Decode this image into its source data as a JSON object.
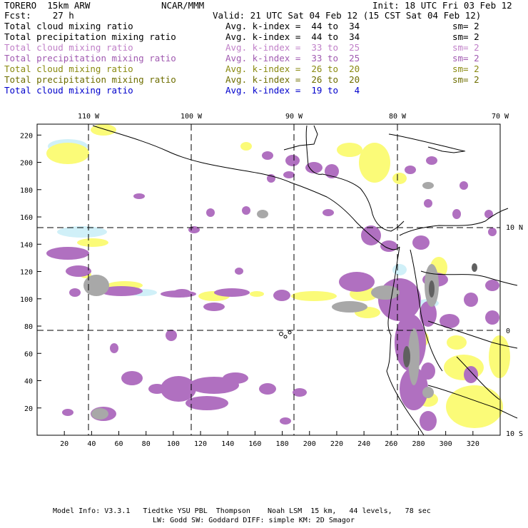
{
  "header": {
    "model_name": "TORERO  15km ARW",
    "institution": "NCAR/MMM",
    "init": "Init: 18 UTC Fri 03 Feb 12",
    "forecast": "Fcst:    27 h",
    "valid": "Valid: 21 UTC Sat 04 Feb 12 (15 CST Sat 04 Feb 12)"
  },
  "legend": [
    {
      "field": "Total cloud mixing ratio",
      "kindex": "Avg. k-index =  44 to  34",
      "sm": "sm= 2",
      "color": "#000000"
    },
    {
      "field": "Total precipitation mixing ratio",
      "kindex": "Avg. k-index =  44 to  34",
      "sm": "sm= 2",
      "color": "#000000"
    },
    {
      "field": "Total cloud mixing ratio",
      "kindex": "Avg. k-index =  33 to  25",
      "sm": "sm= 2",
      "color": "#c080c8"
    },
    {
      "field": "Total precipitation mixing ratio",
      "kindex": "Avg. k-index =  33 to  25",
      "sm": "sm= 2",
      "color": "#a05ab0"
    },
    {
      "field": "Total cloud mixing ratio",
      "kindex": "Avg. k-index =  26 to  20",
      "sm": "sm= 2",
      "color": "#8a8a10"
    },
    {
      "field": "Total precipitation mixing ratio",
      "kindex": "Avg. k-index =  26 to  20",
      "sm": "sm= 2",
      "color": "#6e6e00"
    },
    {
      "field": "Total cloud mixing ratio",
      "kindex": "Avg. k-index =  19 to   4",
      "sm": "",
      "color": "#0000cc"
    }
  ],
  "map": {
    "lon_labels": [
      "110 W",
      "100 W",
      "90 W",
      "80 W",
      "70 W"
    ],
    "lat_labels": [
      "10 N",
      "0",
      "10 S"
    ],
    "x_ticks": [
      "20",
      "40",
      "60",
      "80",
      "100",
      "120",
      "140",
      "160",
      "180",
      "200",
      "220",
      "240",
      "260",
      "280",
      "300",
      "320"
    ],
    "y_ticks": [
      "20",
      "40",
      "60",
      "80",
      "100",
      "120",
      "140",
      "160",
      "180",
      "200",
      "220"
    ],
    "colors": {
      "purple": "#b070c0",
      "yellow": "#fbfb78",
      "light_blue": "#d0f0f8",
      "gray": "#a8a8a8",
      "dark_gray": "#606060"
    }
  },
  "footer": {
    "line1": "Model Info: V3.3.1   Tiedtke YSU PBL  Thompson    Noah LSM  15 km,   44 levels,   78 sec",
    "line2": "LW: Godd SW: Goddard DIFF: simple KM: 2D Smagor"
  }
}
